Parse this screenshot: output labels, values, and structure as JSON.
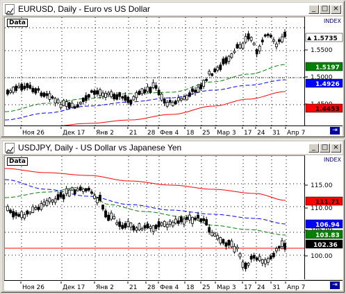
{
  "windows": [
    {
      "title": "EURUSD, Daily - Euro vs US Dollar",
      "data_label": "Data",
      "index_label": "INDEX",
      "time_labels": [
        "Ноя 26",
        "Дек 17",
        "Янв 2",
        "21",
        "28",
        "Фев 4",
        "18",
        "25",
        "Мар 3",
        "17",
        "24",
        "31",
        "Апр 7"
      ],
      "scale_ticks": [
        "1.5500",
        "1.5000",
        "1.4500"
      ],
      "price_badges": [
        {
          "value": "1.5735",
          "color": "#ffffff",
          "text_color": "#000000",
          "marker": "▲"
        },
        {
          "value": "1.5197",
          "color": "#008000",
          "text_color": "#ffffff"
        },
        {
          "value": "1.4926",
          "color": "#0000ff",
          "text_color": "#ffffff"
        },
        {
          "value": "1.4453",
          "color": "#ff0000",
          "text_color": "#000000"
        }
      ]
    },
    {
      "title": "USDJPY, Daily - US Dollar vs Japanese Yen",
      "data_label": "Data",
      "index_label": "INDEX",
      "time_labels": [
        "Ноя 26",
        "Дек 17",
        "Янв 2",
        "21",
        "28",
        "Фев 4",
        "18",
        "25",
        "Мар 3",
        "17",
        "24",
        "31",
        "Апр 7"
      ],
      "scale_ticks": [
        "115.00",
        "110.00",
        "105.00",
        "100.00"
      ],
      "price_badges": [
        {
          "value": "111.71",
          "color": "#ff0000",
          "text_color": "#000000"
        },
        {
          "value": "106.94",
          "color": "#0000ff",
          "text_color": "#ffffff"
        },
        {
          "value": "103.83",
          "color": "#008000",
          "text_color": "#ffffff"
        },
        {
          "value": "102.36",
          "color": "#000000",
          "text_color": "#ffffff",
          "marker": "▲"
        }
      ]
    }
  ],
  "icons": {
    "window_icon": "chart-icon",
    "minimize": "minimize-icon",
    "maximize": "maximize-icon",
    "close": "close-icon",
    "scroll": "scroll-end-icon"
  },
  "colors": {
    "bull_candle": "#ffffff",
    "bear_candle": "#000000",
    "ma_fast": "#008000",
    "ma_mid": "#0000ff",
    "ma_slow": "#ff0000",
    "hline": "#ff0000"
  }
}
